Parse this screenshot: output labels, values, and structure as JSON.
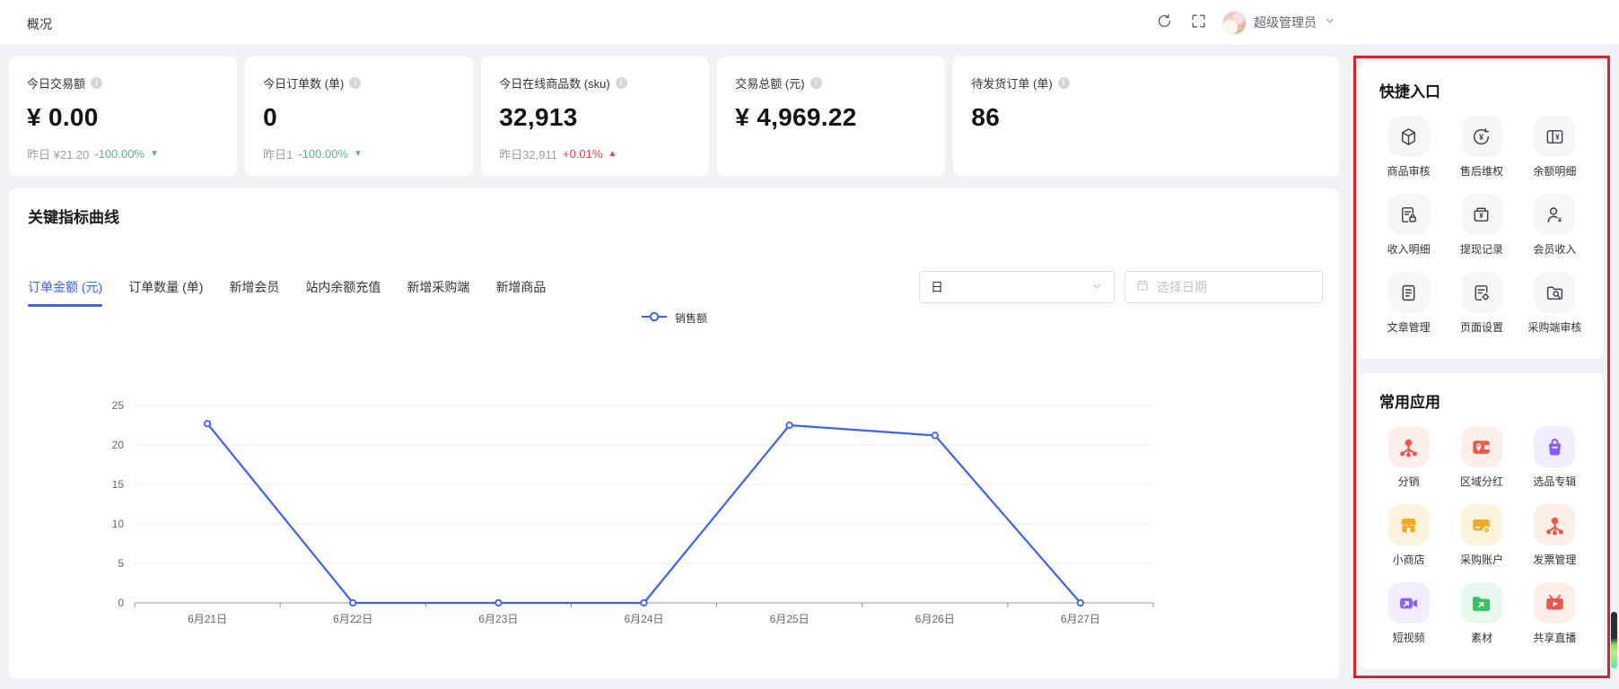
{
  "topbar": {
    "title": "概况",
    "user": "超级管理员"
  },
  "stats": [
    {
      "label": "今日交易额",
      "value": "¥ 0.00",
      "footer_prefix": "昨日 ¥21.20",
      "change": "-100.00%",
      "direction": "down"
    },
    {
      "label": "今日订单数 (单)",
      "value": "0",
      "footer_prefix": "昨日1",
      "change": "-100.00%",
      "direction": "down"
    },
    {
      "label": "今日在线商品数 (sku)",
      "value": "32,913",
      "footer_prefix": "昨日32,911",
      "change": "+0.01%",
      "direction": "up"
    },
    {
      "label": "交易总额 (元)",
      "value": "¥ 4,969.22"
    },
    {
      "label": "待发货订单 (单)",
      "value": "86"
    }
  ],
  "chart_panel": {
    "title": "关键指标曲线",
    "tabs": [
      {
        "label": "订单金额 (元)",
        "active": true
      },
      {
        "label": "订单数量 (单)",
        "active": false
      },
      {
        "label": "新增会员",
        "active": false
      },
      {
        "label": "站内余额充值",
        "active": false
      },
      {
        "label": "新增采购端",
        "active": false
      },
      {
        "label": "新增商品",
        "active": false
      }
    ],
    "period_select": "日",
    "date_placeholder": "选择日期"
  },
  "chart_data": {
    "type": "line",
    "categories": [
      "6月21日",
      "6月22日",
      "6月23日",
      "6月24日",
      "6月25日",
      "6月26日",
      "6月27日"
    ],
    "series": [
      {
        "name": "销售额",
        "color": "#3d61f2",
        "values": [
          22.7,
          0,
          0,
          0,
          22.5,
          21.2,
          0
        ]
      }
    ],
    "ylim": [
      0,
      25
    ],
    "yticks": [
      0,
      5,
      10,
      15,
      20,
      25
    ],
    "grid": true,
    "legend_position": "top-center"
  },
  "quick_entry": {
    "title": "快捷入口",
    "items": [
      {
        "label": "商品审核",
        "icon": "cube"
      },
      {
        "label": "售后维权",
        "icon": "refund-circle"
      },
      {
        "label": "余额明细",
        "icon": "ledger-yen"
      },
      {
        "label": "收入明细",
        "icon": "doc-lock"
      },
      {
        "label": "提现记录",
        "icon": "withdraw-yen"
      },
      {
        "label": "会员收入",
        "icon": "member-yen"
      },
      {
        "label": "文章管理",
        "icon": "article-doc"
      },
      {
        "label": "页面设置",
        "icon": "page-gear"
      },
      {
        "label": "采购端审核",
        "icon": "folder-search"
      }
    ]
  },
  "common_apps": {
    "title": "常用应用",
    "items": [
      {
        "label": "分销",
        "icon": "share-network",
        "theme": "red",
        "color": "#f0564a"
      },
      {
        "label": "区域分红",
        "icon": "wallet-pin",
        "theme": "red",
        "color": "#f0564a"
      },
      {
        "label": "选品专辑",
        "icon": "shopping-bag",
        "theme": "purple",
        "color": "#8a5cf6"
      },
      {
        "label": "小商店",
        "icon": "storefront",
        "theme": "yellow",
        "color": "#f2a820"
      },
      {
        "label": "采购账户",
        "icon": "card-cart",
        "theme": "yellow",
        "color": "#f2a820"
      },
      {
        "label": "发票管理",
        "icon": "invoice-network",
        "theme": "red",
        "color": "#f0564a"
      },
      {
        "label": "短视频",
        "icon": "video-camera",
        "theme": "purple",
        "color": "#8a63f6"
      },
      {
        "label": "素材",
        "icon": "folder-arrow",
        "theme": "green",
        "color": "#34c164"
      },
      {
        "label": "共享直播",
        "icon": "tv-play",
        "theme": "red",
        "color": "#f0564a"
      }
    ]
  },
  "colors": {
    "accent_blue": "#3d61f2",
    "up_red": "#ea4040",
    "down_green": "#53b98b",
    "highlight_border": "#d8232e",
    "page_background": "#f0f2f5"
  }
}
